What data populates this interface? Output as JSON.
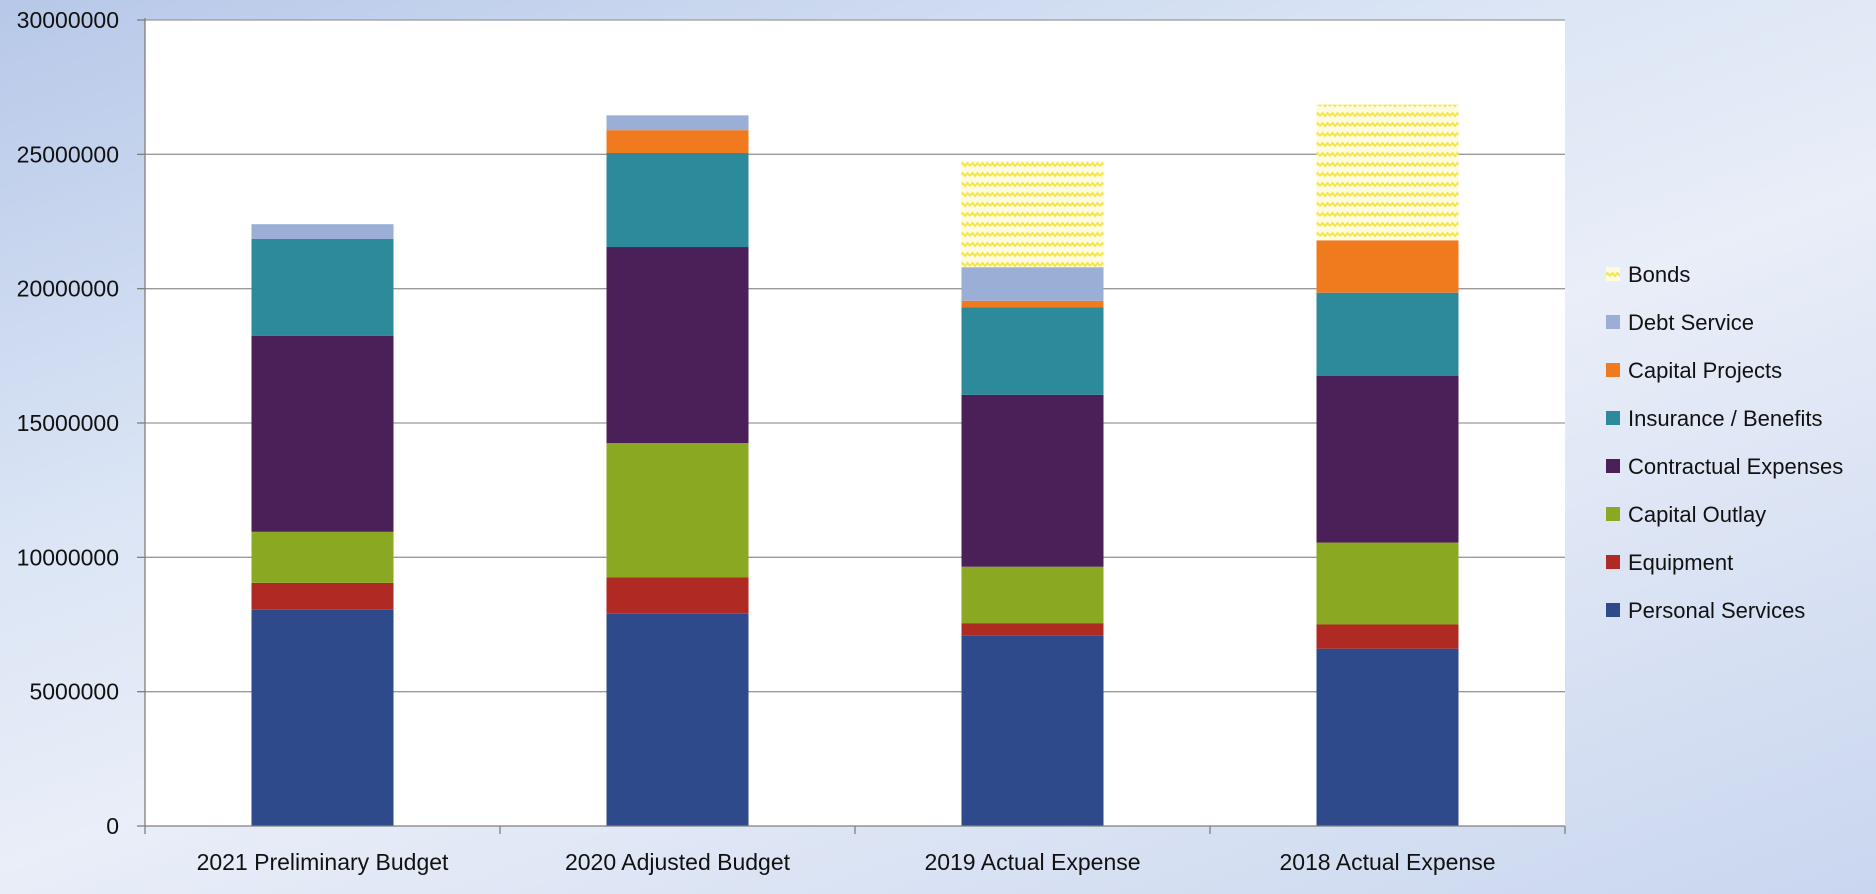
{
  "chart_data": {
    "type": "bar",
    "stacked": true,
    "title": "",
    "xlabel": "",
    "ylabel": "",
    "ylim": [
      0,
      30000000
    ],
    "yticks": [
      0,
      5000000,
      10000000,
      15000000,
      20000000,
      25000000,
      30000000
    ],
    "ytick_labels": [
      "0",
      "5000000",
      "10000000",
      "15000000",
      "20000000",
      "25000000",
      "30000000"
    ],
    "grid": true,
    "legend_position": "right",
    "categories": [
      "2021 Preliminary Budget",
      "2020 Adjusted Budget",
      "2019 Actual Expense",
      "2018 Actual Expense"
    ],
    "series": [
      {
        "name": "Personal Services",
        "color": "#2e4a8a",
        "values": [
          8050000,
          7900000,
          7100000,
          6600000
        ]
      },
      {
        "name": "Equipment",
        "color": "#b02a24",
        "values": [
          1000000,
          1350000,
          450000,
          900000
        ]
      },
      {
        "name": "Capital Outlay",
        "color": "#8aa822",
        "values": [
          1900000,
          5000000,
          2100000,
          3050000
        ]
      },
      {
        "name": "Contractual Expenses",
        "color": "#4b2058",
        "values": [
          7300000,
          7300000,
          6400000,
          6200000
        ]
      },
      {
        "name": "Insurance / Benefits",
        "color": "#2d8a9a",
        "values": [
          3600000,
          3500000,
          3250000,
          3100000
        ]
      },
      {
        "name": "Capital Projects",
        "color": "#f07a1e",
        "values": [
          0,
          850000,
          250000,
          1950000
        ]
      },
      {
        "name": "Debt Service",
        "color": "#9aaed6",
        "values": [
          550000,
          550000,
          1250000,
          0
        ]
      },
      {
        "name": "Bonds",
        "color": "#f2e64a",
        "pattern": "dotted",
        "values": [
          0,
          0,
          3950000,
          5050000
        ]
      }
    ]
  }
}
